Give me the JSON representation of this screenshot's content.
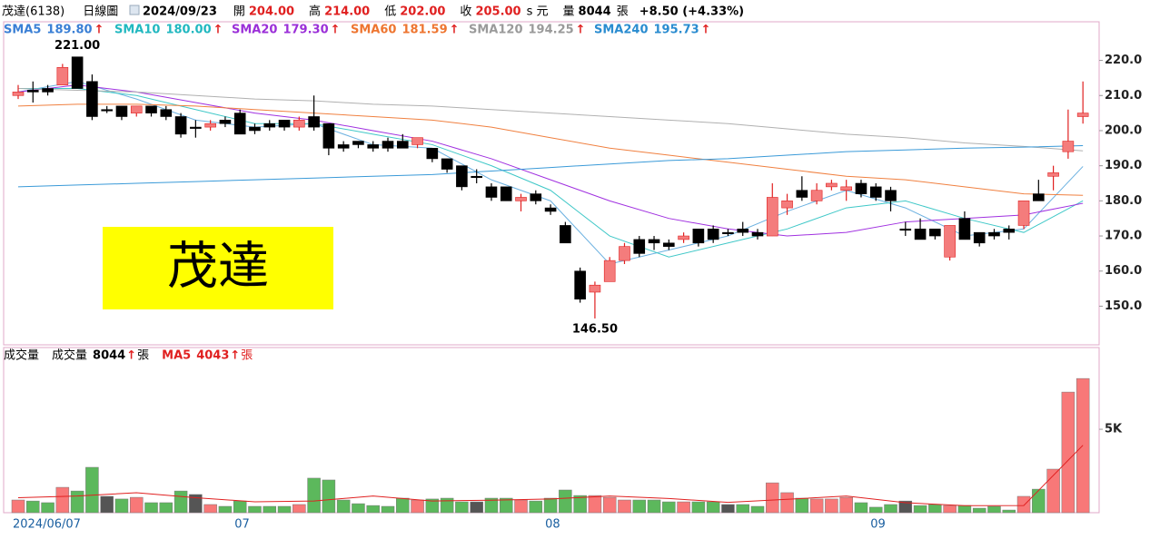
{
  "header": {
    "stock": "茂達(6138)",
    "period": "日線圖",
    "date": "2024/09/23",
    "open_label": "開",
    "open": "204.00",
    "high_label": "高",
    "high": "214.00",
    "low_label": "低",
    "low": "202.00",
    "close_label": "收",
    "close": "205.00",
    "unit": "s 元",
    "volume_label": "量",
    "volume": "8044",
    "volume_unit": "張",
    "change": "+8.50 (+4.33%)"
  },
  "legend_arrow": "↑",
  "watermark": "茂達",
  "chart_data": [
    {
      "type": "candlestick",
      "open": [
        210,
        211.5,
        212,
        213,
        221,
        214,
        206,
        207,
        205,
        207,
        206,
        204,
        201,
        201,
        203,
        205,
        201,
        202,
        203,
        201,
        204,
        202,
        196,
        197,
        196,
        197,
        197,
        196,
        195,
        192,
        190,
        187,
        184,
        184,
        180,
        182,
        178,
        173,
        160,
        154,
        157,
        163,
        169,
        169,
        168,
        169,
        172,
        172,
        171,
        172,
        171,
        170,
        178,
        183,
        180,
        184,
        183,
        185,
        184,
        183,
        172,
        172,
        172,
        164,
        175,
        171,
        171,
        172,
        173,
        182,
        187,
        194,
        204
      ],
      "high": [
        213,
        214,
        213,
        219,
        221,
        216,
        207,
        207,
        207,
        207,
        207,
        205,
        203,
        203,
        204,
        206,
        202,
        203,
        203,
        204,
        210,
        202,
        197,
        197,
        197,
        198,
        199,
        198,
        195,
        192,
        190,
        189,
        185,
        184,
        182,
        183,
        179,
        174,
        161,
        157,
        164,
        168,
        170,
        170,
        169,
        171,
        172,
        173,
        172,
        174,
        172,
        185,
        182,
        187,
        185,
        186,
        186,
        186,
        185,
        184,
        174,
        175,
        172,
        173,
        177,
        171,
        172,
        173,
        180,
        186,
        190,
        206,
        214
      ],
      "low": [
        209,
        208,
        210,
        213,
        212,
        203,
        205,
        203,
        204,
        204,
        203,
        198,
        198,
        200,
        201,
        199,
        199,
        200,
        200,
        200,
        200,
        193,
        194,
        195,
        194,
        194,
        195,
        195,
        191,
        188,
        183,
        185,
        180,
        180,
        177,
        179,
        176,
        168,
        151,
        146.5,
        157,
        162,
        164,
        166,
        166,
        168,
        167,
        168,
        170,
        170,
        169,
        170,
        176,
        180,
        179,
        183,
        180,
        181,
        180,
        177,
        170,
        169,
        169,
        163,
        169,
        167,
        169,
        169,
        172,
        180,
        183,
        192,
        202
      ],
      "close": [
        211,
        211,
        211,
        218,
        212,
        204,
        206,
        204,
        207,
        205,
        204,
        199,
        201,
        202,
        202,
        199,
        200,
        201,
        201,
        203,
        201,
        195,
        195,
        196,
        195,
        195,
        195,
        198,
        192,
        189,
        184,
        187,
        181,
        180,
        181,
        180,
        177,
        168,
        152,
        156,
        163,
        167,
        165,
        168,
        167,
        170,
        168,
        169,
        171,
        171,
        170,
        181,
        180,
        181,
        183,
        185,
        184,
        182,
        181,
        180,
        172,
        169,
        170,
        173,
        169,
        168,
        170,
        171,
        180,
        180,
        188,
        197,
        205
      ],
      "up_color": "#f47c7c",
      "down_color": "#000000",
      "wick_up_color": "#e02020",
      "high_label": "221.00",
      "low_label": "146.50",
      "ylim": [
        139,
        231
      ],
      "yticks": [
        {
          "value": 150,
          "label": "150.0"
        },
        {
          "value": 160,
          "label": "160.0"
        },
        {
          "value": 170,
          "label": "170.0"
        },
        {
          "value": 180,
          "label": "180.0"
        },
        {
          "value": 190,
          "label": "190.0"
        },
        {
          "value": 200,
          "label": "200.0"
        },
        {
          "value": 210,
          "label": "210.0"
        },
        {
          "value": 220,
          "label": "220.0"
        }
      ],
      "ma_x": [
        0,
        4,
        8,
        12,
        16,
        20,
        24,
        28,
        32,
        36,
        40,
        44,
        48,
        52,
        56,
        60,
        64,
        68,
        72
      ],
      "series": [
        {
          "name": "SMA5",
          "label": "189.80",
          "color": "#3a7fd5",
          "line_color": "#6ab0e0",
          "values": [
            211,
            214,
            209,
            203,
            201,
            202,
            196,
            195,
            186,
            180,
            162,
            166,
            170,
            177,
            183,
            178,
            170,
            172,
            189.8
          ]
        },
        {
          "name": "SMA10",
          "label": "180.00",
          "color": "#22b8c0",
          "line_color": "#40c8c8",
          "values": [
            212,
            212,
            210,
            206,
            202,
            202,
            199,
            196,
            190,
            183,
            170,
            164,
            168,
            172,
            178,
            180,
            175,
            171,
            180
          ]
        },
        {
          "name": "SMA20",
          "label": "179.30",
          "color": "#9b2fd8",
          "line_color": "#a030e0",
          "values": [
            211,
            213,
            211,
            208,
            205,
            203,
            200,
            197,
            192,
            186,
            180,
            175,
            172,
            170,
            171,
            174,
            175,
            176,
            179.3
          ]
        },
        {
          "name": "SMA60",
          "label": "181.59",
          "color": "#ee7530",
          "line_color": "#f08040",
          "values": [
            207,
            207.5,
            207.5,
            207,
            206,
            205,
            204,
            203,
            201,
            198,
            195,
            193,
            191,
            189,
            187,
            186,
            184,
            182,
            181.59
          ]
        },
        {
          "name": "SMA120",
          "label": "194.25",
          "color": "#9a9a9a",
          "line_color": "#b0b0b0",
          "values": [
            212,
            211.5,
            211,
            210,
            209,
            208.5,
            207.5,
            207,
            206,
            205,
            204,
            203,
            202,
            200.5,
            199,
            198,
            196.5,
            195.5,
            194.25
          ]
        },
        {
          "name": "SMA240",
          "label": "195.73",
          "color": "#2a8cd0",
          "line_color": "#3a9ad8",
          "values": [
            184,
            184.5,
            185,
            185.5,
            186,
            186.5,
            187,
            187.5,
            188.5,
            189.5,
            190.5,
            191.5,
            192,
            193,
            194,
            194.5,
            195,
            195.3,
            195.73
          ]
        }
      ]
    },
    {
      "type": "bar",
      "title": "成交量",
      "name": "成交量",
      "unit": "張",
      "categories": [
        "2024/06/07",
        null,
        null,
        null,
        null,
        null,
        null,
        null,
        null,
        null,
        null,
        null,
        null,
        null,
        null,
        "07",
        null,
        null,
        null,
        null,
        null,
        null,
        null,
        null,
        null,
        null,
        null,
        null,
        null,
        null,
        null,
        null,
        null,
        null,
        null,
        null,
        "08",
        null,
        null,
        null,
        null,
        null,
        null,
        null,
        null,
        null,
        null,
        null,
        null,
        null,
        null,
        null,
        null,
        null,
        null,
        null,
        null,
        null,
        "09",
        null,
        null,
        null,
        null,
        null,
        null,
        null,
        null,
        null,
        null,
        null,
        null,
        null,
        null
      ],
      "values": [
        760,
        700,
        600,
        1520,
        1300,
        2720,
        980,
        820,
        920,
        600,
        600,
        1300,
        1090,
        490,
        380,
        700,
        380,
        380,
        380,
        490,
        2070,
        1960,
        760,
        540,
        430,
        380,
        870,
        760,
        820,
        870,
        650,
        650,
        870,
        870,
        760,
        700,
        870,
        1360,
        1030,
        1030,
        920,
        760,
        760,
        760,
        650,
        650,
        650,
        650,
        490,
        490,
        380,
        1790,
        1200,
        870,
        820,
        820,
        920,
        600,
        330,
        490,
        700,
        430,
        490,
        430,
        430,
        270,
        380,
        160,
        980,
        1410,
        2610,
        7230,
        8044
      ],
      "up_color": "#f87878",
      "down_color": "#5cb85c",
      "flat_color": "#555555",
      "ylim": [
        0,
        9900
      ],
      "yticks": [
        {
          "value": 5000,
          "label": "5K"
        }
      ],
      "ma_x": [
        0,
        4,
        8,
        12,
        16,
        20,
        24,
        28,
        32,
        36,
        40,
        44,
        48,
        52,
        56,
        60,
        64,
        68,
        72
      ],
      "ma": {
        "name": "MA5",
        "color": "#e02020",
        "values": [
          900,
          1000,
          1200,
          900,
          650,
          700,
          1000,
          700,
          750,
          820,
          1000,
          850,
          620,
          800,
          1000,
          600,
          420,
          430,
          4043
        ]
      }
    }
  ]
}
